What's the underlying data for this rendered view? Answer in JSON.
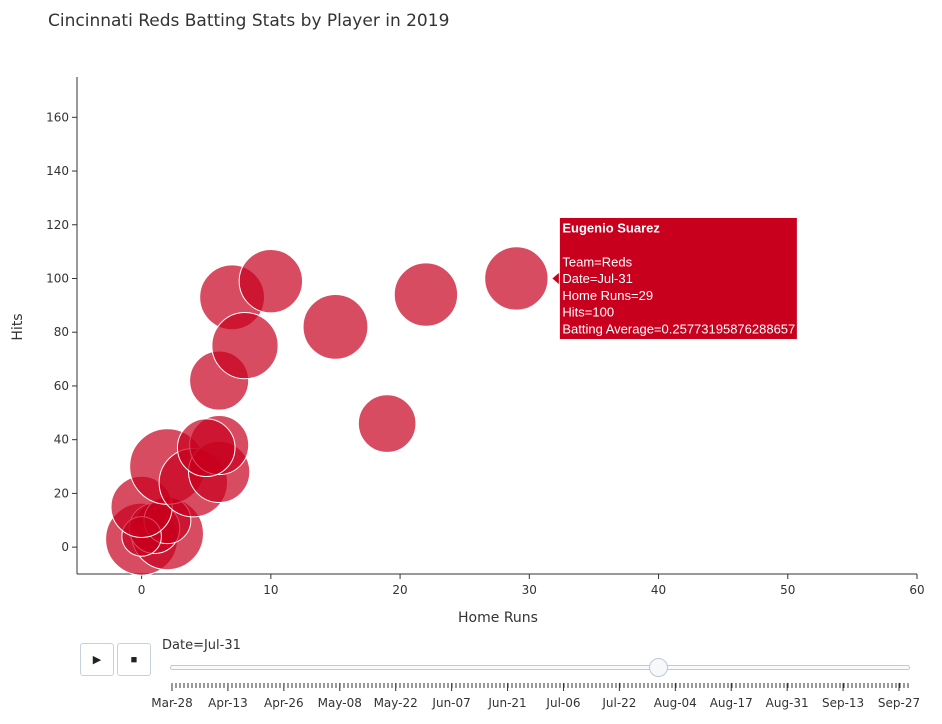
{
  "title": "Cincinnati Reds Batting Stats by Player in 2019",
  "chart_data": {
    "type": "scatter",
    "xlabel": "Home Runs",
    "ylabel": "Hits",
    "xlim": [
      -5,
      60
    ],
    "ylim": [
      -10,
      175
    ],
    "xticks": [
      0,
      10,
      20,
      30,
      40,
      50,
      60
    ],
    "yticks": [
      0,
      20,
      40,
      60,
      80,
      100,
      120,
      140,
      160
    ],
    "marker_color": "#c8001e",
    "points": [
      {
        "x": 0,
        "y": 3,
        "size": 1.0
      },
      {
        "x": 2,
        "y": 5,
        "size": 1.0
      },
      {
        "x": 1,
        "y": 7,
        "size": 0.7
      },
      {
        "x": 2,
        "y": 10,
        "size": 0.65
      },
      {
        "x": 0,
        "y": 4,
        "size": 0.55
      },
      {
        "x": 0,
        "y": 15,
        "size": 0.85
      },
      {
        "x": 2,
        "y": 30,
        "size": 1.05
      },
      {
        "x": 4,
        "y": 24,
        "size": 0.95
      },
      {
        "x": 6,
        "y": 28,
        "size": 0.85
      },
      {
        "x": 6,
        "y": 38,
        "size": 0.82
      },
      {
        "x": 5,
        "y": 37,
        "size": 0.8
      },
      {
        "x": 6,
        "y": 62,
        "size": 0.82
      },
      {
        "x": 7,
        "y": 93,
        "size": 0.9
      },
      {
        "x": 8,
        "y": 75,
        "size": 0.92
      },
      {
        "x": 10,
        "y": 99,
        "size": 0.88
      },
      {
        "x": 15,
        "y": 82,
        "size": 0.9
      },
      {
        "x": 19,
        "y": 46,
        "size": 0.8
      },
      {
        "x": 22,
        "y": 94,
        "size": 0.88
      },
      {
        "x": 29,
        "y": 100,
        "size": 0.88
      }
    ],
    "hover": {
      "name": "Eugenio Suarez",
      "lines": [
        "Team=Reds",
        "Date=Jul-31",
        "Home Runs=29",
        "Hits=100",
        "Batting Average=0.25773195876288657"
      ]
    }
  },
  "controls": {
    "play_symbol": "▶",
    "stop_symbol": "■",
    "current_label": "Date=Jul-31",
    "current_fraction": 0.66,
    "date_labels": [
      "Mar-28",
      "Apr-13",
      "Apr-26",
      "May-08",
      "May-22",
      "Jun-07",
      "Jun-21",
      "Jul-06",
      "Jul-22",
      "Aug-04",
      "Aug-17",
      "Aug-31",
      "Sep-13",
      "Sep-27"
    ]
  }
}
